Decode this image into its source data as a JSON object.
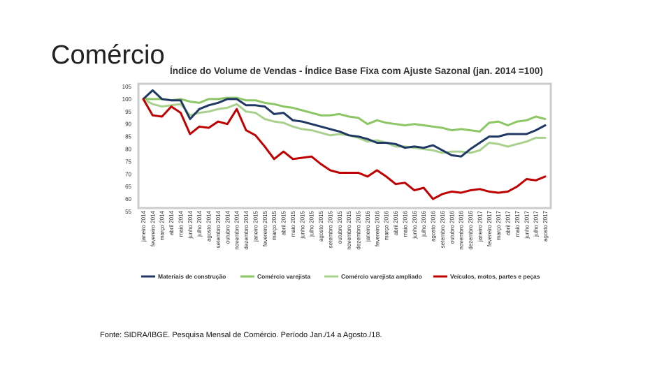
{
  "slide": {
    "title": "Comércio",
    "source": "Fonte: SIDRA/IBGE. Pesquisa Mensal de Comércio. Período Jan./14 a Agosto./18."
  },
  "chart_data": {
    "type": "line",
    "title": "Índice do Volume de Vendas - Índice Base Fixa com Ajuste Sazonal (jan. 2014 =100)",
    "xlabel": "",
    "ylabel": "",
    "ylim": [
      55,
      105
    ],
    "yticks": [
      55,
      60,
      65,
      70,
      75,
      80,
      85,
      90,
      95,
      100,
      105
    ],
    "grid": false,
    "legend_position": "bottom",
    "categories": [
      "janeiro 2014",
      "fevereiro 2014",
      "março 2014",
      "abril 2014",
      "maio 2014",
      "junho 2014",
      "julho 2014",
      "agosto 2014",
      "setembro 2014",
      "outubro 2014",
      "novembro 2014",
      "dezembro 2014",
      "janeiro 2015",
      "fevereiro 2015",
      "março 2015",
      "abril 2015",
      "maio 2015",
      "junho 2015",
      "julho 2015",
      "agosto 2015",
      "setembro 2015",
      "outubro 2015",
      "novembro 2015",
      "dezembro 2015",
      "janeiro 2016",
      "fevereiro 2016",
      "março 2016",
      "abril 2016",
      "maio 2016",
      "junho 2016",
      "julho 2016",
      "agosto 2016",
      "setembro 2016",
      "outubro 2016",
      "novembro 2016",
      "dezembro 2016",
      "janeiro 2017",
      "fevereiro 2017",
      "março 2017",
      "abril 2017",
      "maio 2017",
      "junho 2017",
      "julho 2017",
      "agosto 2017"
    ],
    "series": [
      {
        "name": "Materiais de construção",
        "color": "#1f3864",
        "values": [
          100,
          103.5,
          100,
          99.5,
          99.5,
          92,
          96,
          97.5,
          98.5,
          100,
          100,
          97.5,
          97.5,
          97,
          94,
          94.5,
          91.5,
          91,
          90,
          89,
          88,
          87,
          85.5,
          85,
          84,
          82.5,
          82.5,
          82,
          80.5,
          81,
          80.5,
          81.5,
          79.5,
          77.5,
          77,
          80,
          82.5,
          85,
          85,
          86,
          86,
          86,
          87.5,
          89.5
        ]
      },
      {
        "name": "Comércio varejista",
        "color": "#8cc665",
        "values": [
          100,
          100,
          100,
          99.5,
          100,
          99,
          98.5,
          100,
          100,
          100.5,
          100.5,
          99.5,
          99.5,
          98.5,
          98,
          97,
          96.5,
          95.5,
          94.5,
          93.5,
          93.5,
          94,
          93,
          92.5,
          90,
          91.5,
          90.5,
          90,
          89.5,
          90,
          89.5,
          89,
          88.5,
          87.5,
          88,
          87.5,
          87,
          90.5,
          91,
          89.5,
          91,
          91.5,
          93,
          92
        ]
      },
      {
        "name": "Comércio varejista ampliado",
        "color": "#a9d18e",
        "values": [
          100,
          98,
          97,
          97.5,
          98,
          93.5,
          94.5,
          95,
          96,
          96.5,
          98,
          95,
          94.5,
          92,
          91,
          90.5,
          89,
          88,
          87.5,
          86.5,
          85.5,
          86,
          85.5,
          84.5,
          83,
          83.5,
          82.5,
          81,
          81,
          80.5,
          80,
          79.5,
          78.5,
          79,
          79,
          78.5,
          79.5,
          82.5,
          82,
          81,
          82,
          83,
          84.5,
          84.5
        ]
      },
      {
        "name": "Veículos, motos, partes e peças",
        "color": "#c00000",
        "values": [
          100,
          93.5,
          93,
          97,
          94.5,
          86,
          89,
          88.5,
          91,
          90,
          96,
          87.5,
          85.5,
          81,
          76,
          79,
          76,
          76.5,
          77,
          74,
          71.5,
          70.5,
          70.5,
          70.5,
          69,
          71.5,
          69,
          66,
          66.5,
          63.5,
          64.5,
          60,
          62,
          63,
          62.5,
          63.5,
          64,
          63,
          62.5,
          63,
          65,
          68,
          67.5,
          69
        ]
      }
    ]
  }
}
